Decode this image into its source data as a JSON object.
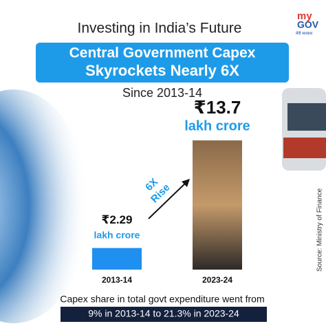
{
  "chart_data": {
    "type": "bar",
    "title": "Investing in India’s Future",
    "headline": [
      "Central Government Capex",
      "Skyrockets Nearly 6X"
    ],
    "subtitle": "Since 2013-14",
    "categories": [
      "2013-14",
      "2023-24"
    ],
    "values": [
      2.29,
      13.7
    ],
    "value_labels": [
      "₹2.29",
      "₹13.7"
    ],
    "unit_label": "lakh crore",
    "colors": [
      "#1f8ff0",
      "#5a4330"
    ],
    "ylim": [
      0,
      14
    ],
    "annotation": [
      "6X",
      "Rise"
    ],
    "footnote": "Capex share in total govt expenditure went from",
    "footnote_highlight": "9% in 2013-14 to 21.3% in 2023-24",
    "source": "Source: Ministry of Finance",
    "logo": [
      "my",
      "GOV",
      "मेरी सरकार"
    ]
  }
}
